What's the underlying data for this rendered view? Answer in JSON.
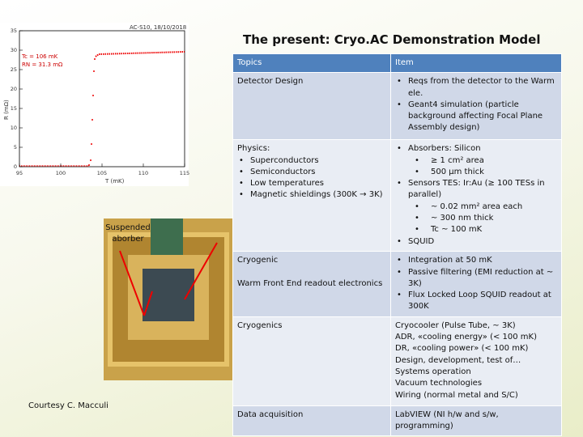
{
  "title": "The present: Cryo.AC Demonstration Model",
  "figure": {
    "header": "AC-S10, 18/10/2018",
    "annotations": [
      "Tc = 106 mK",
      "RN = 31.3 mΩ"
    ],
    "ylabel": "R (mΩ)",
    "xlabel": "T (mK)",
    "xticks": [
      95,
      100,
      105,
      110,
      115
    ],
    "yticks": [
      0,
      5,
      10,
      15,
      20,
      25,
      30,
      35
    ]
  },
  "photo_label": "Suspended aborber",
  "credit": "Courtesy C. Macculi",
  "table": {
    "header": [
      "Topics",
      "Item"
    ],
    "rows": [
      [
        {
          "text": [
            "Detector Design"
          ]
        },
        {
          "bullets": [
            {
              "text": "Reqs from the detector to the Warm ele."
            },
            {
              "text": "Geant4 simulation (particle background affecting Focal Plane Assembly design)"
            }
          ]
        }
      ],
      [
        {
          "text": [
            "Physics:"
          ],
          "bullets": [
            {
              "text": "Superconductors"
            },
            {
              "text": "Semiconductors"
            },
            {
              "text": "Low temperatures"
            },
            {
              "text": "Magnetic shieldings (300K → 3K)"
            }
          ]
        },
        {
          "bullets": [
            {
              "text": "Absorbers: Silicon",
              "sub": [
                "≥ 1 cm² area",
                "500 µm thick"
              ]
            },
            {
              "text": "Sensors TES: Ir:Au (≥ 100 TESs in parallel)",
              "sub": [
                "~ 0.02 mm² area each",
                "~ 300 nm thick",
                "Tc ~ 100 mK"
              ]
            },
            {
              "text": "SQUID"
            }
          ]
        }
      ],
      [
        {
          "text": [
            "Cryogenic",
            "Warm Front End readout electronics"
          ]
        },
        {
          "bullets": [
            {
              "text": "Integration at 50 mK"
            },
            {
              "text": "Passive filtering (EMI reduction at ~ 3K)"
            },
            {
              "text": "Flux Locked Loop SQUID readout at 300K"
            }
          ]
        }
      ],
      [
        {
          "text": [
            "Cryogenics"
          ]
        },
        {
          "text": [
            "Cryocooler (Pulse Tube, ~ 3K)",
            "ADR, «cooling energy» (< 100 mK)",
            "DR, «cooling power» (< 100 mK)",
            "Design, development, test of…",
            "Systems operation",
            "Vacuum technologies",
            "Wiring (normal metal and S/C)"
          ]
        }
      ],
      [
        {
          "text": [
            "Data acquisition"
          ]
        },
        {
          "text": [
            "LabVIEW (NI h/w and s/w, programming)"
          ]
        }
      ]
    ]
  }
}
